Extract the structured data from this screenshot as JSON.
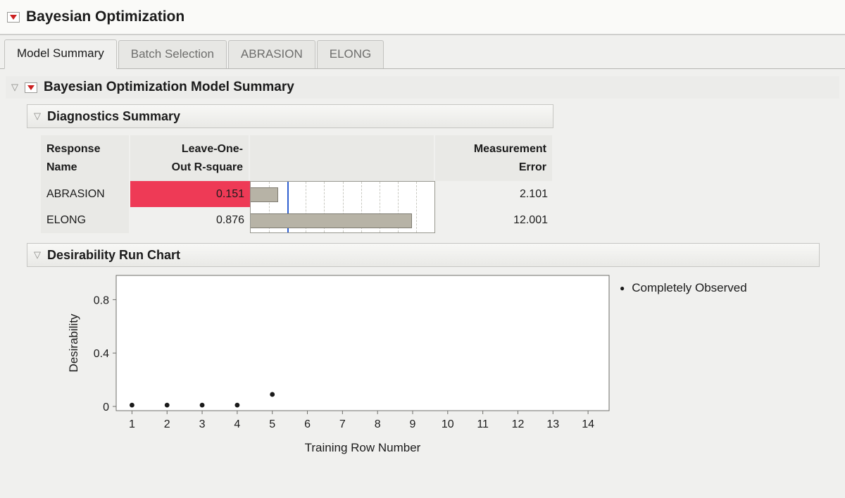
{
  "window": {
    "title": "Bayesian Optimization"
  },
  "tabs": [
    {
      "label": "Model Summary",
      "active": true
    },
    {
      "label": "Batch Selection",
      "active": false
    },
    {
      "label": "ABRASION",
      "active": false
    },
    {
      "label": "ELONG",
      "active": false
    }
  ],
  "outline": {
    "model_summary_title": "Bayesian Optimization Model Summary",
    "diagnostics_title": "Diagnostics Summary",
    "run_chart_title": "Desirability Run Chart"
  },
  "diagnostics": {
    "columns": [
      "Response\nName",
      "Leave-One-\nOut R-square",
      "",
      "Measurement\nError"
    ],
    "rows": [
      {
        "name": "ABRASION",
        "r_square": "0.151",
        "r_square_value": 0.151,
        "highlighted": true,
        "measurement_error": "2.101"
      },
      {
        "name": "ELONG",
        "r_square": "0.876",
        "r_square_value": 0.876,
        "highlighted": false,
        "measurement_error": "12.001"
      }
    ],
    "reference_line": 0.2,
    "colors": {
      "highlight": "#ee3a56",
      "bar_fill": "#b7b3a6",
      "bar_border": "#807d73",
      "reference_line": "#2f5fd0"
    }
  },
  "chart_data": {
    "type": "scatter",
    "title": "Desirability Run Chart",
    "xlabel": "Training Row Number",
    "ylabel": "Desirability",
    "x": [
      1,
      2,
      3,
      4,
      5
    ],
    "y": [
      0.01,
      0.01,
      0.01,
      0.01,
      0.09
    ],
    "xlim": [
      0.55,
      14.6
    ],
    "ylim": [
      0,
      0.95
    ],
    "xticks": [
      1,
      2,
      3,
      4,
      5,
      6,
      7,
      8,
      9,
      10,
      11,
      12,
      13,
      14
    ],
    "yticks": [
      0,
      0.4,
      0.8
    ],
    "grid": false,
    "legend_position": "right",
    "series_name": "Completely Observed",
    "point_color": "#1a1a1a"
  }
}
